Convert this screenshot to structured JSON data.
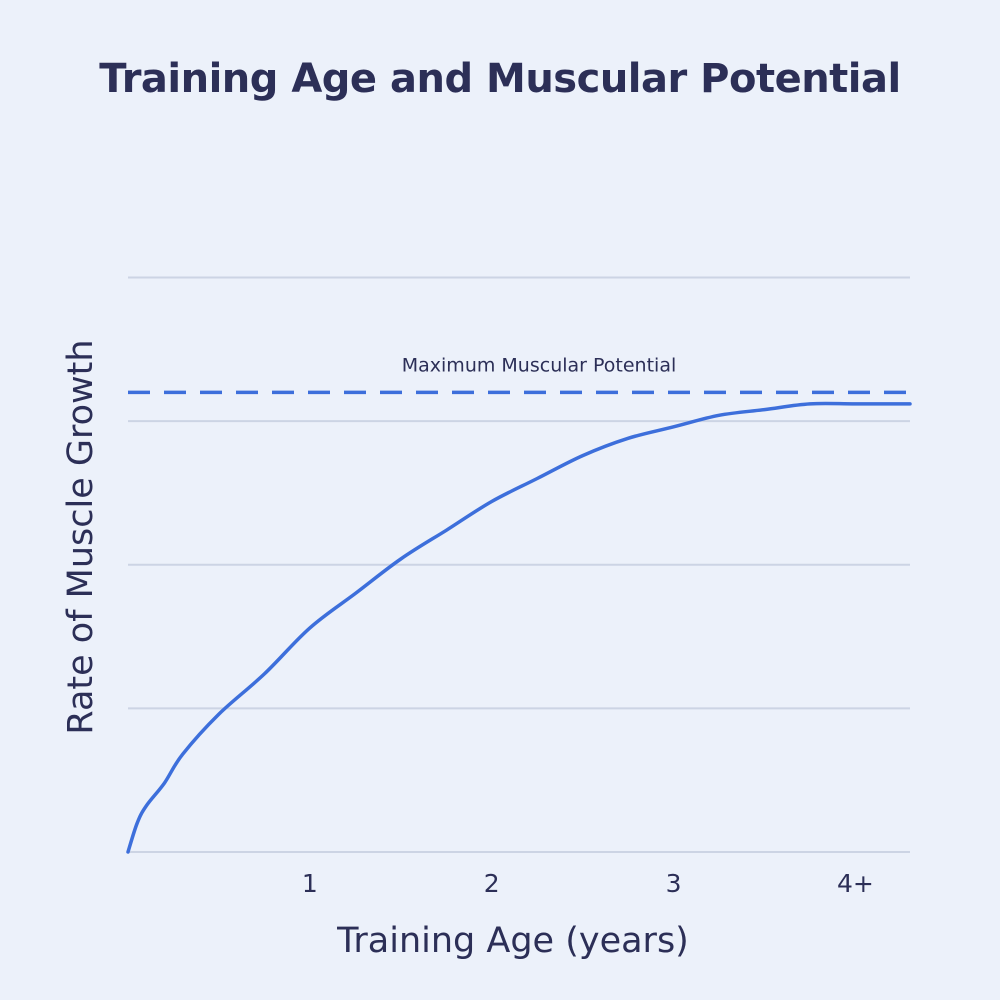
{
  "chart_data": {
    "type": "line",
    "title": "Training Age and Muscular Potential",
    "xlabel": "Training Age (years)",
    "ylabel": "Rate of Muscle Growth",
    "x_ticks": [
      {
        "value": 1,
        "label": "1"
      },
      {
        "value": 2,
        "label": "2"
      },
      {
        "value": 3,
        "label": "3"
      },
      {
        "value": 4,
        "label": "4+"
      }
    ],
    "xlim": [
      0,
      4.3
    ],
    "ylim": [
      0,
      1.1
    ],
    "y_gridlines": [
      0,
      0.25,
      0.5,
      0.75,
      1.0
    ],
    "y_tick_labels_shown": false,
    "grid": true,
    "reference_line": {
      "label": "Maximum Muscular Potential",
      "value": 0.8,
      "style": "dashed",
      "color": "#3d6fdb"
    },
    "series": [
      {
        "color": "#3d6fdb",
        "points": [
          [
            0.0,
            0.0
          ],
          [
            0.05,
            0.05
          ],
          [
            0.1,
            0.08
          ],
          [
            0.2,
            0.12
          ],
          [
            0.3,
            0.17
          ],
          [
            0.5,
            0.24
          ],
          [
            0.75,
            0.31
          ],
          [
            1.0,
            0.39
          ],
          [
            1.25,
            0.45
          ],
          [
            1.5,
            0.51
          ],
          [
            1.75,
            0.56
          ],
          [
            2.0,
            0.61
          ],
          [
            2.25,
            0.65
          ],
          [
            2.5,
            0.69
          ],
          [
            2.75,
            0.72
          ],
          [
            3.0,
            0.74
          ],
          [
            3.25,
            0.76
          ],
          [
            3.5,
            0.77
          ],
          [
            3.75,
            0.78
          ],
          [
            4.0,
            0.78
          ],
          [
            4.3,
            0.78
          ]
        ]
      }
    ]
  }
}
